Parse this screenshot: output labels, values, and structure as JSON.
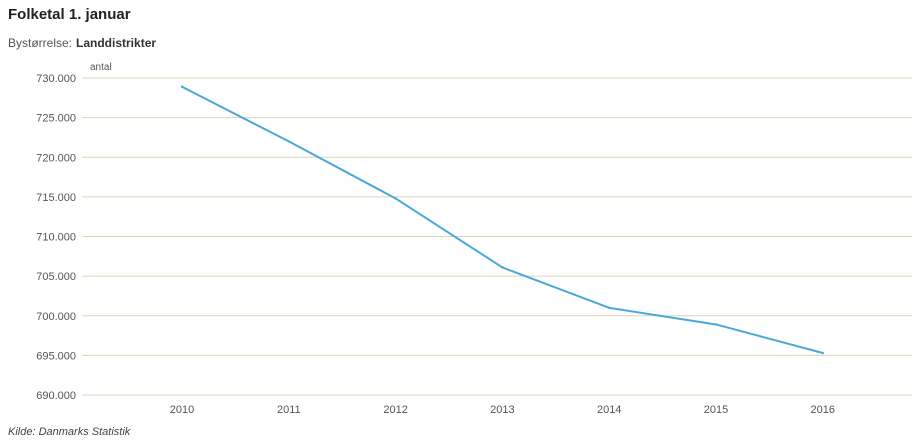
{
  "header": {
    "title": "Folketal 1. januar",
    "subtitle_label": "Bystørrelse:",
    "subtitle_value": "Landdistrikter"
  },
  "source": "Kilde: Danmarks Statistik",
  "colors": {
    "line": "#4aa8d8",
    "grid": "#d9d6b8",
    "axis_text": "#555555"
  },
  "chart_data": {
    "type": "line",
    "title": "Folketal 1. januar",
    "xlabel": "",
    "ylabel": "antal",
    "categories": [
      "2010",
      "2011",
      "2012",
      "2013",
      "2014",
      "2015",
      "2016"
    ],
    "series": [
      {
        "values": [
          728900,
          722000,
          714800,
          706100,
          701000,
          698900,
          695300
        ]
      }
    ],
    "ylim": [
      690000,
      730000
    ],
    "yticks": [
      {
        "value": 730000,
        "label": "730.000"
      },
      {
        "value": 725000,
        "label": "725.000"
      },
      {
        "value": 720000,
        "label": "720.000"
      },
      {
        "value": 715000,
        "label": "715.000"
      },
      {
        "value": 710000,
        "label": "710.000"
      },
      {
        "value": 705000,
        "label": "705.000"
      },
      {
        "value": 700000,
        "label": "700.000"
      },
      {
        "value": 695000,
        "label": "695.000"
      },
      {
        "value": 690000,
        "label": "690.000"
      }
    ],
    "grid": true,
    "legend": "none"
  }
}
